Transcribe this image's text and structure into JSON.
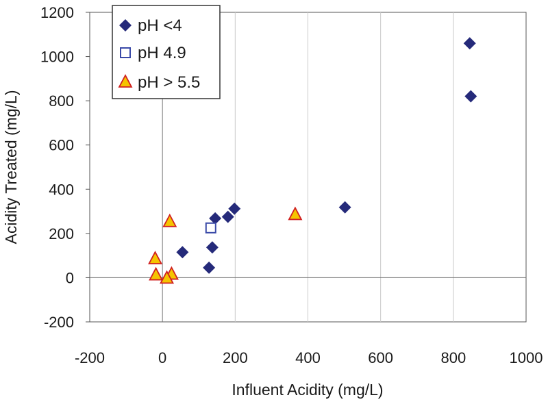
{
  "chart_data": {
    "type": "scatter",
    "title": "",
    "xlabel": "Influent Acidity (mg/L)",
    "ylabel": "Acidity Treated (mg/L)",
    "xlim": [
      -200,
      1000
    ],
    "ylim": [
      -200,
      1200
    ],
    "xticks": [
      -200,
      0,
      200,
      400,
      600,
      800,
      1000
    ],
    "yticks": [
      -200,
      0,
      200,
      400,
      600,
      800,
      1000,
      1200
    ],
    "grid": "vertical",
    "legend_position": "top-left",
    "series": [
      {
        "name": "pH <4",
        "marker": "diamond",
        "color": "#252a7a",
        "points": [
          [
            845,
            1060
          ],
          [
            848,
            820
          ],
          [
            502,
            318
          ],
          [
            198,
            312
          ],
          [
            180,
            275
          ],
          [
            145,
            268
          ],
          [
            137,
            137
          ],
          [
            128,
            45
          ],
          [
            55,
            115
          ]
        ]
      },
      {
        "name": "pH 4.9",
        "marker": "square-open",
        "color": "#3a4aa8",
        "points": [
          [
            133,
            225
          ]
        ]
      },
      {
        "name": "pH > 5.5",
        "marker": "triangle",
        "color": "#f5c400",
        "stroke": "#d02020",
        "points": [
          [
            365,
            285
          ],
          [
            20,
            253
          ],
          [
            -20,
            85
          ],
          [
            -18,
            12
          ],
          [
            25,
            15
          ],
          [
            12,
            -3
          ]
        ]
      }
    ]
  }
}
